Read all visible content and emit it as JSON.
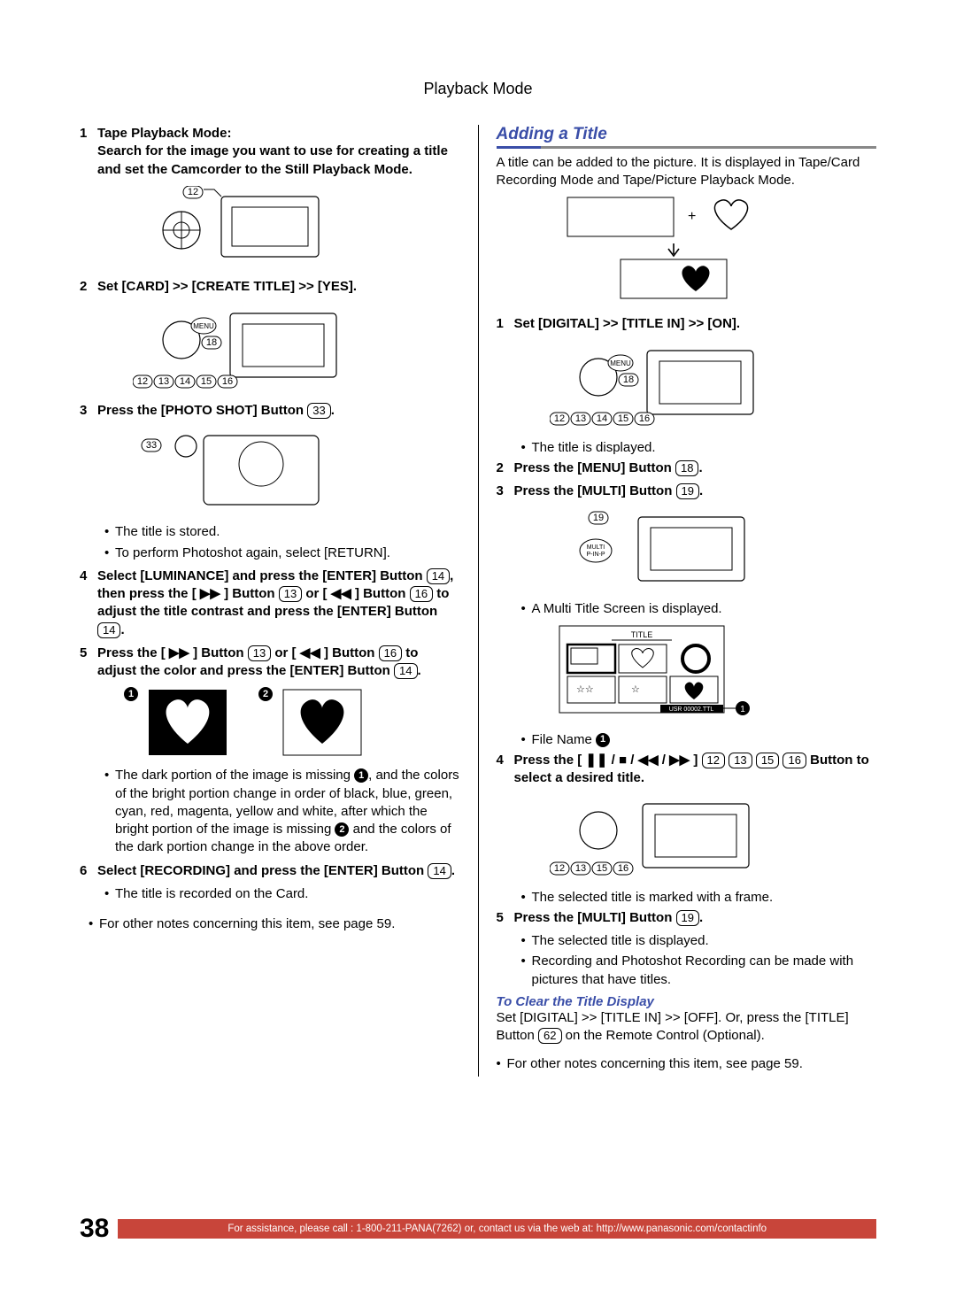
{
  "header": "Playback Mode",
  "left": {
    "step1_num": "1",
    "step1_text": "Tape Playback Mode:\nSearch for the image you want to use for creating a title and set the Camcorder to the Still Playback Mode.",
    "step1_pill": "12",
    "step2_num": "2",
    "step2_text": "Set [CARD] >> [CREATE TITLE] >> [YES].",
    "step2_pills": [
      "12",
      "13",
      "14",
      "15",
      "16"
    ],
    "step2_menu_pill": "18",
    "step3_num": "3",
    "step3_text_a": "Press the [PHOTO SHOT] Button ",
    "step3_pill": "33",
    "step3_text_b": ".",
    "step3_pill_img": "33",
    "bullet3a": "The title is stored.",
    "bullet3b": "To perform Photoshot again, select [RETURN].",
    "step4_num": "4",
    "step4_text": "Select [LUMINANCE] and press the [ENTER] Button {14}, then press the [ ▶▶ ] Button {13} or [ ◀◀ ] Button {16} to adjust the title contrast and press the [ENTER] Button {14}.",
    "step5_num": "5",
    "step5_text": "Press the [ ▶▶ ] Button {13} or [ ◀◀ ] Button {16} to adjust the color and press the [ENTER] Button {14}.",
    "hearts_note": "The dark portion of the image is missing ①, and the colors of the bright portion change in order of black, blue, green, cyan, red, magenta, yellow and white, after which the bright portion of the image is missing ② and the colors of the dark portion change in the above order.",
    "step6_num": "6",
    "step6_text": "Select [RECORDING] and press the [ENTER] Button {14}.",
    "bullet6": "The title is recorded on the Card.",
    "other_notes": "For other notes concerning this item, see page 59."
  },
  "right": {
    "heading": "Adding a Title",
    "intro": "A title can be added to the picture. It is displayed in Tape/Card Recording Mode and Tape/Picture Playback Mode.",
    "step1_num": "1",
    "step1_text": "Set [DIGITAL] >> [TITLE IN] >> [ON].",
    "step1_pills": [
      "12",
      "13",
      "14",
      "15",
      "16"
    ],
    "step1_menu_pill": "18",
    "bullet1": "The title is displayed.",
    "step2_num": "2",
    "step2_text_a": "Press the [MENU] Button ",
    "step2_pill": "18",
    "step2_text_b": ".",
    "step3_num": "3",
    "step3_text_a": "Press the [MULTI] Button ",
    "step3_pill": "19",
    "step3_text_b": ".",
    "step3_pill_img": "19",
    "step3_multi_label": "MULTI\nP-IN-P",
    "bullet3": "A Multi Title Screen is displayed.",
    "title_screen_label": "TITLE",
    "title_screen_filename": "USR 00002.TTL",
    "file_name_label": "File Name ",
    "step4_num": "4",
    "step4_text": "Press the [ ❚❚ / ■ / ◀◀ / ▶▶ ] {12} {13} {15} {16} Button to select a desired title.",
    "step4_pills": [
      "12",
      "13",
      "15",
      "16"
    ],
    "bullet4": "The selected title is marked with a frame.",
    "step5_num": "5",
    "step5_text_a": "Press the [MULTI] Button ",
    "step5_pill": "19",
    "step5_text_b": ".",
    "bullet5a": "The selected title is displayed.",
    "bullet5b": "Recording and Photoshot Recording can be made with pictures that have titles.",
    "clear_heading": "To Clear the Title Display",
    "clear_text": "Set [DIGITAL] >> [TITLE IN] >> [OFF]. Or, press the [TITLE] Button {62} on the Remote Control (Optional).",
    "other_notes": "For other notes concerning this item, see page 59."
  },
  "footer": {
    "page": "38",
    "strip": "For assistance, please call : 1-800-211-PANA(7262) or, contact us via the web at: http://www.panasonic.com/contactinfo"
  },
  "colors": {
    "accent": "#3a4ea8",
    "footer_bg": "#c8453a"
  }
}
